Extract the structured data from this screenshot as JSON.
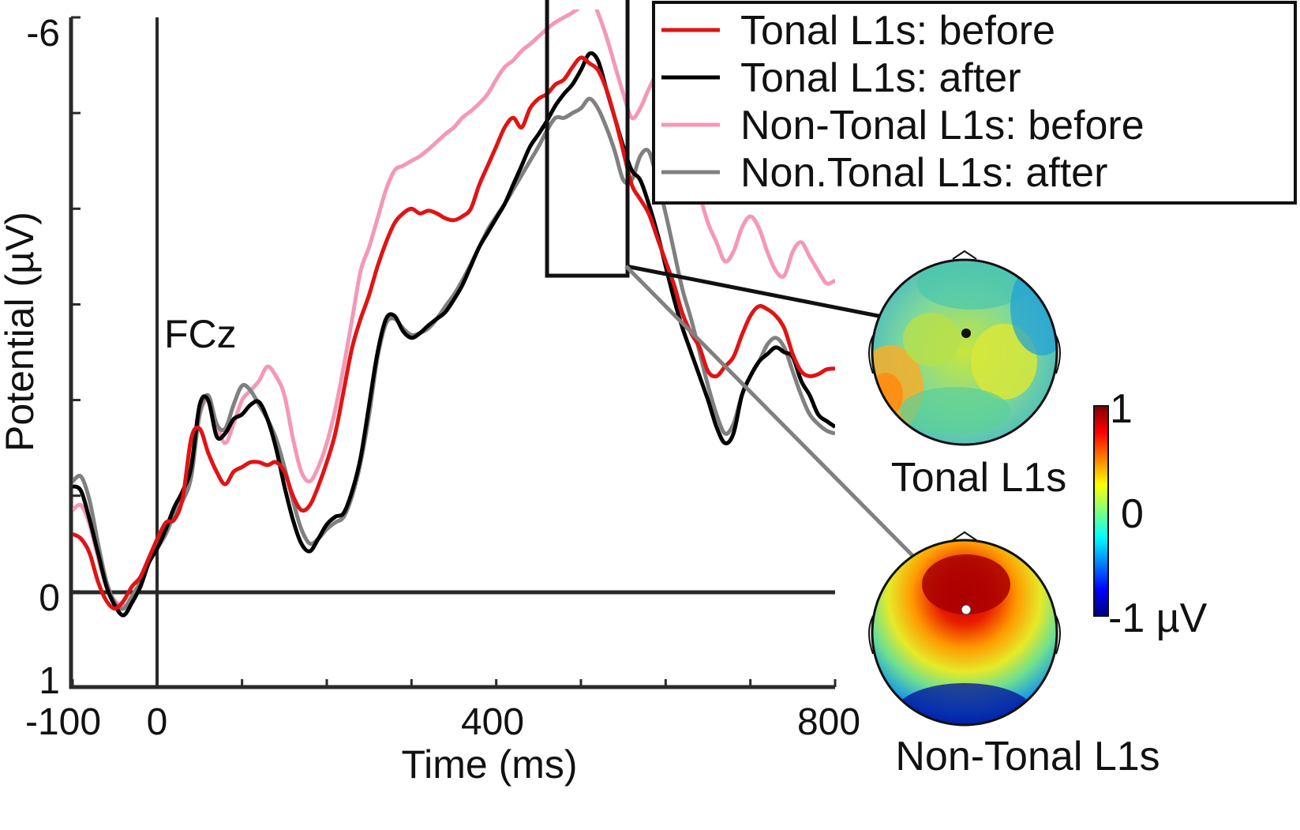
{
  "chart_data": {
    "type": "line",
    "channel_label": "FCz",
    "xlabel": "Time (ms)",
    "ylabel": "Potential (µV)",
    "xlim": [
      -100,
      800
    ],
    "ylim": [
      1,
      -6
    ],
    "y_axis_inverted": true,
    "x_ticks": [
      -100,
      0,
      400,
      800
    ],
    "y_ticks": [
      -6,
      0,
      1
    ],
    "x_tick_labels": [
      "-100",
      "0",
      "400",
      "800"
    ],
    "y_tick_labels": [
      "-6",
      "0",
      "1"
    ],
    "x_minor_ticks": [
      100,
      200,
      300,
      500,
      600,
      700
    ],
    "y_minor_ticks": [
      -5,
      -4,
      -3,
      -2,
      -1
    ],
    "highlight_window": {
      "x": [
        460,
        555
      ],
      "y": [
        -6.8,
        -3.3
      ]
    },
    "legend_position": "top-right",
    "series": [
      {
        "name": "Tonal L1s: before",
        "color": "#e01414",
        "x": [
          -100,
          -90,
          -80,
          -70,
          -60,
          -50,
          -40,
          -30,
          -20,
          -10,
          0,
          10,
          20,
          30,
          40,
          50,
          60,
          70,
          80,
          90,
          100,
          110,
          120,
          130,
          140,
          150,
          160,
          170,
          180,
          190,
          200,
          210,
          220,
          230,
          240,
          250,
          260,
          270,
          280,
          290,
          300,
          310,
          320,
          330,
          340,
          350,
          360,
          370,
          380,
          390,
          400,
          410,
          420,
          430,
          440,
          450,
          460,
          470,
          480,
          490,
          500,
          510,
          520,
          530,
          540,
          550,
          560,
          570,
          580,
          590,
          600,
          610,
          620,
          630,
          640,
          650,
          660,
          670,
          680,
          690,
          700,
          710,
          720,
          730,
          740,
          750,
          760,
          770,
          780,
          790,
          800
        ],
        "y": [
          -0.6,
          -0.55,
          -0.4,
          -0.1,
          0.1,
          0.18,
          0.1,
          -0.05,
          -0.15,
          -0.35,
          -0.55,
          -0.72,
          -0.75,
          -0.98,
          -1.6,
          -1.7,
          -1.45,
          -1.25,
          -1.12,
          -1.25,
          -1.3,
          -1.35,
          -1.35,
          -1.32,
          -1.35,
          -1.25,
          -1.0,
          -0.85,
          -0.9,
          -1.1,
          -1.35,
          -1.65,
          -2.1,
          -2.55,
          -2.85,
          -3.1,
          -3.4,
          -3.65,
          -3.85,
          -3.95,
          -4.0,
          -3.95,
          -3.98,
          -3.95,
          -3.9,
          -3.88,
          -3.92,
          -4.0,
          -4.25,
          -4.45,
          -4.65,
          -4.85,
          -4.95,
          -4.85,
          -5.05,
          -5.15,
          -5.2,
          -5.3,
          -5.35,
          -5.48,
          -5.58,
          -5.52,
          -5.45,
          -5.25,
          -4.95,
          -4.6,
          -4.25,
          -4.1,
          -3.95,
          -3.7,
          -3.45,
          -3.2,
          -2.9,
          -2.7,
          -2.55,
          -2.3,
          -2.25,
          -2.35,
          -2.45,
          -2.68,
          -2.88,
          -2.98,
          -2.95,
          -2.88,
          -2.75,
          -2.48,
          -2.3,
          -2.25,
          -2.27,
          -2.32,
          -2.33
        ]
      },
      {
        "name": "Tonal L1s: after",
        "color": "#000000",
        "x": [
          -100,
          -90,
          -80,
          -70,
          -60,
          -50,
          -40,
          -30,
          -20,
          -10,
          0,
          10,
          20,
          30,
          40,
          50,
          60,
          70,
          80,
          90,
          100,
          110,
          120,
          130,
          140,
          150,
          160,
          170,
          180,
          190,
          200,
          210,
          220,
          230,
          240,
          250,
          260,
          270,
          280,
          290,
          300,
          310,
          320,
          330,
          340,
          350,
          360,
          370,
          380,
          390,
          400,
          410,
          420,
          430,
          440,
          450,
          460,
          470,
          480,
          490,
          500,
          510,
          520,
          530,
          540,
          550,
          560,
          570,
          580,
          590,
          600,
          610,
          620,
          630,
          640,
          650,
          660,
          670,
          680,
          690,
          700,
          710,
          720,
          730,
          740,
          750,
          760,
          770,
          780,
          790,
          800
        ],
        "y": [
          -1.1,
          -1.05,
          -0.75,
          -0.4,
          -0.05,
          0.15,
          0.25,
          0.12,
          -0.05,
          -0.3,
          -0.45,
          -0.65,
          -0.88,
          -1.05,
          -1.3,
          -1.95,
          -2.0,
          -1.62,
          -1.65,
          -1.8,
          -1.85,
          -1.95,
          -1.98,
          -1.8,
          -1.5,
          -1.1,
          -0.75,
          -0.5,
          -0.42,
          -0.55,
          -0.7,
          -0.78,
          -0.82,
          -1.05,
          -1.4,
          -1.95,
          -2.5,
          -2.85,
          -2.88,
          -2.72,
          -2.65,
          -2.7,
          -2.78,
          -2.85,
          -2.92,
          -3.05,
          -3.2,
          -3.4,
          -3.6,
          -3.75,
          -3.9,
          -4.05,
          -4.25,
          -4.45,
          -4.65,
          -4.78,
          -4.92,
          -5.08,
          -5.2,
          -5.3,
          -5.45,
          -5.62,
          -5.55,
          -5.25,
          -4.95,
          -4.65,
          -4.4,
          -4.3,
          -4.05,
          -3.75,
          -3.4,
          -3.05,
          -2.75,
          -2.5,
          -2.25,
          -2.0,
          -1.72,
          -1.55,
          -1.65,
          -2.05,
          -2.25,
          -2.4,
          -2.48,
          -2.55,
          -2.5,
          -2.45,
          -2.2,
          -2.05,
          -1.85,
          -1.78,
          -1.72
        ]
      },
      {
        "name": "Non-Tonal L1s: before",
        "color": "#f498b6",
        "x": [
          -100,
          -90,
          -80,
          -70,
          -60,
          -50,
          -40,
          -30,
          -20,
          -10,
          0,
          10,
          20,
          30,
          40,
          50,
          60,
          70,
          80,
          90,
          100,
          110,
          120,
          130,
          140,
          150,
          160,
          170,
          180,
          190,
          200,
          210,
          220,
          230,
          240,
          250,
          260,
          270,
          280,
          290,
          300,
          310,
          320,
          330,
          340,
          350,
          360,
          370,
          380,
          390,
          400,
          410,
          420,
          430,
          440,
          450,
          460,
          470,
          480,
          490,
          500,
          510,
          520,
          530,
          540,
          550,
          560,
          570,
          580,
          590,
          600,
          610,
          620,
          630,
          640,
          650,
          660,
          670,
          680,
          690,
          700,
          710,
          720,
          730,
          740,
          750,
          760,
          770,
          780,
          790,
          800
        ],
        "y": [
          -0.85,
          -0.9,
          -0.7,
          -0.35,
          -0.05,
          0.1,
          0.15,
          0.1,
          -0.05,
          -0.3,
          -0.5,
          -0.65,
          -0.8,
          -1.0,
          -1.35,
          -1.85,
          -2.0,
          -1.75,
          -1.55,
          -1.75,
          -2.0,
          -2.1,
          -2.2,
          -2.35,
          -2.25,
          -2.05,
          -1.6,
          -1.25,
          -1.15,
          -1.3,
          -1.55,
          -1.9,
          -2.35,
          -2.85,
          -3.35,
          -3.6,
          -3.9,
          -4.2,
          -4.4,
          -4.45,
          -4.5,
          -4.55,
          -4.62,
          -4.7,
          -4.78,
          -4.85,
          -4.95,
          -5.02,
          -5.1,
          -5.2,
          -5.35,
          -5.48,
          -5.55,
          -5.65,
          -5.72,
          -5.8,
          -5.88,
          -5.95,
          -6.0,
          -6.05,
          -6.12,
          -6.25,
          -6.05,
          -5.8,
          -5.5,
          -5.2,
          -4.95,
          -5.05,
          -5.25,
          -5.4,
          -5.35,
          -5.1,
          -4.75,
          -4.45,
          -4.15,
          -3.85,
          -3.65,
          -3.45,
          -3.55,
          -3.8,
          -3.92,
          -3.8,
          -3.55,
          -3.35,
          -3.3,
          -3.55,
          -3.65,
          -3.5,
          -3.35,
          -3.22,
          -3.25
        ]
      },
      {
        "name": "Non.Tonal L1s: after",
        "color": "#808080",
        "x": [
          -100,
          -90,
          -80,
          -70,
          -60,
          -50,
          -40,
          -30,
          -20,
          -10,
          0,
          10,
          20,
          30,
          40,
          50,
          60,
          70,
          80,
          90,
          100,
          110,
          120,
          130,
          140,
          150,
          160,
          170,
          180,
          190,
          200,
          210,
          220,
          230,
          240,
          250,
          260,
          270,
          280,
          290,
          300,
          310,
          320,
          330,
          340,
          350,
          360,
          370,
          380,
          390,
          400,
          410,
          420,
          430,
          440,
          450,
          460,
          470,
          480,
          490,
          500,
          510,
          520,
          530,
          540,
          550,
          560,
          570,
          580,
          590,
          600,
          610,
          620,
          630,
          640,
          650,
          660,
          670,
          680,
          690,
          700,
          710,
          720,
          730,
          740,
          750,
          760,
          770,
          780,
          790,
          800
        ],
        "y": [
          -1.15,
          -1.2,
          -0.95,
          -0.5,
          -0.1,
          0.12,
          0.18,
          0.05,
          -0.1,
          -0.3,
          -0.45,
          -0.6,
          -0.8,
          -0.95,
          -1.2,
          -1.85,
          -2.05,
          -1.75,
          -1.7,
          -1.95,
          -2.15,
          -2.1,
          -1.95,
          -1.8,
          -1.6,
          -1.3,
          -0.95,
          -0.65,
          -0.5,
          -0.55,
          -0.65,
          -0.72,
          -0.78,
          -1.0,
          -1.35,
          -1.85,
          -2.45,
          -2.8,
          -2.85,
          -2.75,
          -2.68,
          -2.7,
          -2.75,
          -2.85,
          -2.98,
          -3.1,
          -3.25,
          -3.42,
          -3.6,
          -3.78,
          -3.92,
          -4.05,
          -4.2,
          -4.35,
          -4.5,
          -4.65,
          -4.82,
          -4.95,
          -4.95,
          -5.0,
          -5.05,
          -5.15,
          -5.05,
          -4.85,
          -4.6,
          -4.3,
          -4.3,
          -4.55,
          -4.6,
          -4.3,
          -3.95,
          -3.55,
          -3.15,
          -2.85,
          -2.5,
          -2.15,
          -1.85,
          -1.65,
          -1.75,
          -2.05,
          -2.25,
          -2.4,
          -2.58,
          -2.65,
          -2.55,
          -2.3,
          -2.05,
          -1.85,
          -1.75,
          -1.68,
          -1.65
        ]
      }
    ],
    "topomaps": [
      {
        "label": "Tonal L1s",
        "marker": "black-dot"
      },
      {
        "label": "Non-Tonal L1s",
        "marker": "white-dot"
      }
    ],
    "colorbar": {
      "max_label": "1",
      "mid_label": "0",
      "min_label": "-1 µV",
      "range": [
        -1,
        1
      ],
      "colormap": [
        "#00007f",
        "#0000ff",
        "#007fff",
        "#00ffff",
        "#7fff7f",
        "#ffff00",
        "#ff7f00",
        "#ff0000",
        "#7f0000"
      ]
    }
  }
}
